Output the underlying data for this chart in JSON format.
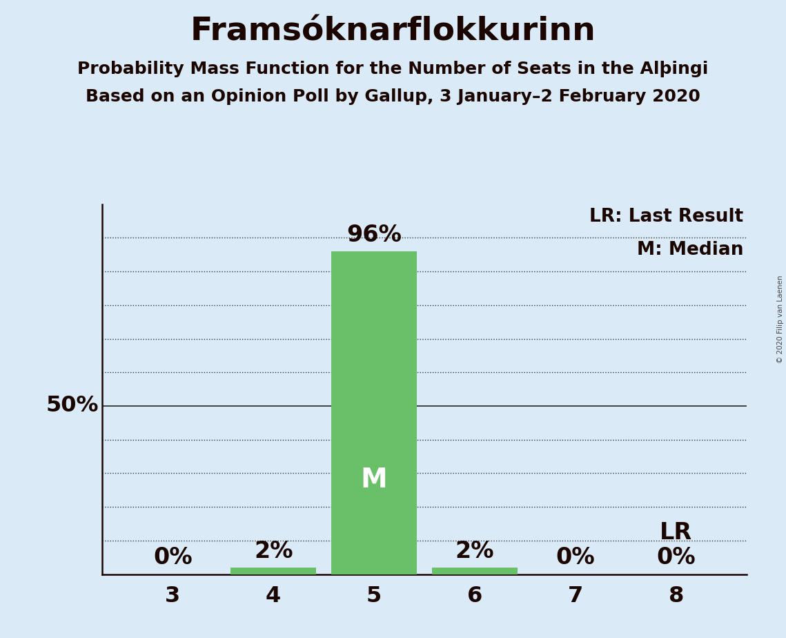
{
  "title": "Framsóknarflokkurinn",
  "subtitle1": "Probability Mass Function for the Number of Seats in the Alþingi",
  "subtitle2": "Based on an Opinion Poll by Gallup, 3 January–2 February 2020",
  "seats": [
    3,
    4,
    5,
    6,
    7,
    8
  ],
  "probabilities": [
    0,
    2,
    96,
    2,
    0,
    0
  ],
  "bar_color": "#6abf69",
  "median_seat": 5,
  "last_result_seat": 8,
  "background_color": "#daeaf7",
  "text_color": "#1a0500",
  "ylabel_text": "50%",
  "ylabel_value": 50,
  "ylim_max": 110,
  "legend_lr": "LR: Last Result",
  "legend_m": "M: Median",
  "copyright": "© 2020 Filip van Laenen",
  "grid_color": "#333333",
  "axis_color": "#1a0500",
  "title_fontsize": 34,
  "subtitle_fontsize": 18,
  "bar_label_fontsize": 24,
  "tick_fontsize": 23,
  "legend_fontsize": 19,
  "median_label_fontsize": 28
}
